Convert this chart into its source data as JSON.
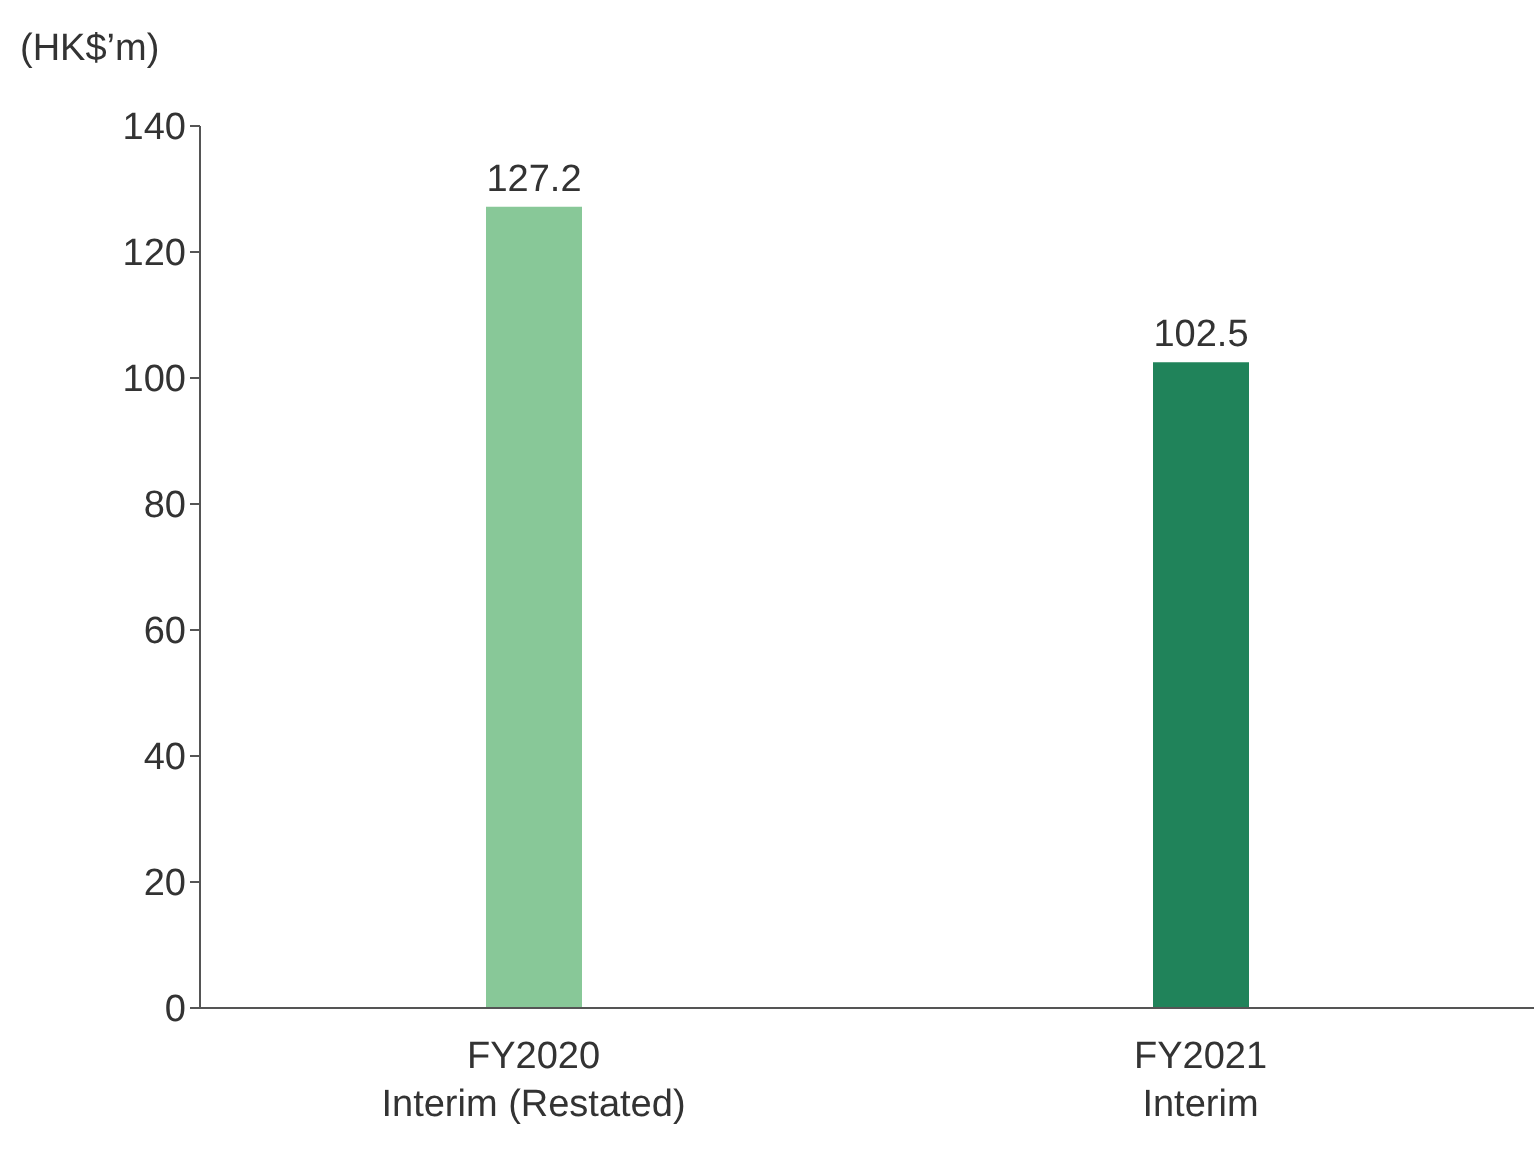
{
  "chart_data": {
    "type": "bar",
    "ylabel": "(HK$’m)",
    "categories": [
      "FY2020\nInterim (Restated)",
      "FY2021\nInterim"
    ],
    "values": [
      127.2,
      102.5
    ],
    "colors": [
      "#88c898",
      "#20835a"
    ],
    "ylim": [
      0,
      140
    ],
    "yticks": [
      0,
      20,
      40,
      60,
      80,
      100,
      120,
      140
    ],
    "data_labels": true,
    "grid": false
  }
}
